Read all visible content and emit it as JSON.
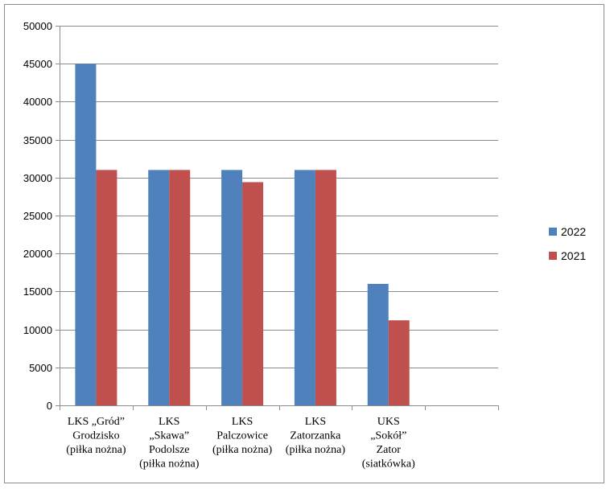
{
  "chart_data": {
    "type": "bar",
    "categories": [
      [
        "LKS  „Gród”",
        "Grodzisko",
        "(piłka nożna)"
      ],
      [
        "LKS",
        "„Skawa”",
        "Podolsze",
        "(piłka nożna)"
      ],
      [
        "LKS",
        "Palczowice",
        "(piłka nożna)"
      ],
      [
        "LKS",
        "Zatorzanka",
        "(piłka nożna)"
      ],
      [
        "UKS",
        "„Sokół”",
        "Zator",
        "(siatkówka)"
      ],
      [
        ""
      ]
    ],
    "series": [
      {
        "name": "2022",
        "color": "#4f81bd",
        "values": [
          45000,
          31000,
          31000,
          31000,
          16000,
          null
        ]
      },
      {
        "name": "2021",
        "color": "#c0504d",
        "values": [
          31000,
          31000,
          29400,
          31000,
          11200,
          null
        ]
      }
    ],
    "ylim": [
      0,
      50000
    ],
    "yticks": [
      0,
      5000,
      10000,
      15000,
      20000,
      25000,
      30000,
      35000,
      40000,
      45000,
      50000
    ],
    "grid": true,
    "legend": "right"
  }
}
